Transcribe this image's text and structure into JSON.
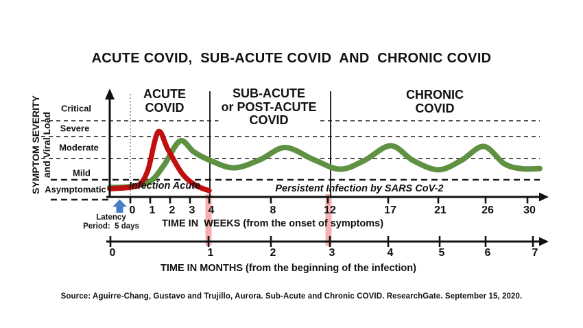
{
  "title": "ACUTE COVID,  SUB-ACUTE COVID  AND  CHRONIC COVID",
  "y_axis": {
    "title": "SYMPTOM SEVERITY\nand Viral Load",
    "labels": [
      "Critical",
      "Severe",
      "Moderate",
      "Mild",
      "Asymptomatic"
    ]
  },
  "phases": [
    {
      "label": "ACUTE\nCOVID"
    },
    {
      "label": "SUB-ACUTE\nor POST-ACUTE\nCOVID"
    },
    {
      "label": "CHRONIC\nCOVID"
    }
  ],
  "annotations": {
    "infection_acute": "Infection Acute",
    "persistent_infection": "Persistent Infection by SARS CoV-2",
    "latency": "Latency\nPeriod:  5 days"
  },
  "axes": {
    "weeks": {
      "caption": "TIME IN  WEEKS (from the onset of symptoms)",
      "ticks": [
        "0",
        "1",
        "2",
        "3",
        "4",
        "8",
        "12",
        "17",
        "21",
        "26",
        "30"
      ]
    },
    "months": {
      "caption": "TIME IN MONTHS (from the beginning of the infection)",
      "ticks": [
        "0",
        "1",
        "2",
        "3",
        "4",
        "5",
        "6",
        "7"
      ]
    }
  },
  "source": "Source: Aguirre-Chang, Gustavo and Trujillo, Aurora. Sub-Acute and Chronic COVID. ResearchGate. September 15, 2020.",
  "colors": {
    "acute_curve": "#c00f0f",
    "persistent_curve": "#5e9142",
    "marker_bar": "#f5b0b0",
    "latency_arrow": "#4a7cc7",
    "axis": "#111111"
  },
  "chart_data": {
    "type": "line",
    "title": "ACUTE COVID, SUB-ACUTE COVID AND CHRONIC COVID",
    "xlabel_weeks": "TIME IN WEEKS (from the onset of symptoms)",
    "xlabel_months": "TIME IN MONTHS (from the beginning of the infection)",
    "ylabel": "SYMPTOM SEVERITY and Viral Load",
    "x_ticks_weeks": [
      0,
      1,
      2,
      3,
      4,
      8,
      12,
      17,
      21,
      26,
      30
    ],
    "x_ticks_months": [
      0,
      1,
      2,
      3,
      4,
      5,
      6,
      7
    ],
    "severity_bands": [
      "Asymptomatic",
      "Mild",
      "Moderate",
      "Severe",
      "Critical"
    ],
    "severity_scale_note": "severity value 0 = asymptomatic baseline line, 1 = mild/asymptomatic boundary, 2 = moderate/mild boundary, 3 = severe/moderate boundary, 4 = critical/severe boundary",
    "phase_regions": [
      {
        "label": "ACUTE COVID",
        "week_range": [
          0,
          4
        ]
      },
      {
        "label": "SUB-ACUTE or POST-ACUTE COVID",
        "week_range": [
          4,
          12
        ]
      },
      {
        "label": "CHRONIC COVID",
        "week_range": [
          12,
          30
        ]
      }
    ],
    "event_marker_weeks": [
      4,
      12
    ],
    "latency_days": 5,
    "series": [
      {
        "name": "Persistent Infection by SARS CoV-2",
        "color": "#5e9142",
        "points": [
          [
            -1,
            0.62
          ],
          [
            0,
            0.66
          ],
          [
            1,
            0.92
          ],
          [
            1.7,
            1.7
          ],
          [
            2.5,
            2.8
          ],
          [
            3.2,
            2.3
          ],
          [
            4,
            1.93
          ],
          [
            5.6,
            1.56
          ],
          [
            7.3,
            1.95
          ],
          [
            9,
            2.5
          ],
          [
            11,
            1.95
          ],
          [
            13,
            1.5
          ],
          [
            15,
            1.9
          ],
          [
            17.2,
            2.58
          ],
          [
            19,
            1.9
          ],
          [
            21,
            1.47
          ],
          [
            23.4,
            1.9
          ],
          [
            25.8,
            2.55
          ],
          [
            27.8,
            1.75
          ],
          [
            29.5,
            1.52
          ],
          [
            31,
            1.53
          ]
        ]
      },
      {
        "name": "Infection Acute",
        "color": "#c00f0f",
        "points": [
          [
            -1,
            0.55
          ],
          [
            0,
            0.62
          ],
          [
            0.5,
            0.8
          ],
          [
            0.9,
            1.5
          ],
          [
            1.4,
            3.3
          ],
          [
            1.9,
            2.4
          ],
          [
            2.6,
            1.3
          ],
          [
            3.3,
            0.72
          ],
          [
            4,
            0.45
          ]
        ]
      }
    ]
  }
}
